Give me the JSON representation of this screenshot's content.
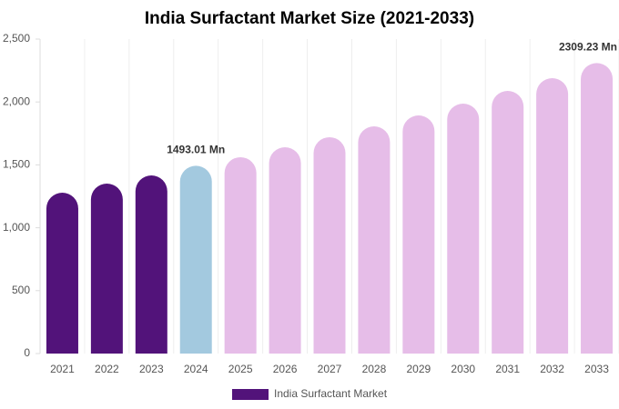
{
  "chart_data": {
    "type": "bar",
    "title": "India Surfactant Market Size (2021-2033)",
    "categories": [
      "2021",
      "2022",
      "2023",
      "2024",
      "2025",
      "2026",
      "2027",
      "2028",
      "2029",
      "2030",
      "2031",
      "2032",
      "2033"
    ],
    "series": [
      {
        "name": "India Surfactant Market",
        "color": "#52137a",
        "colors": [
          "#52137a",
          "#52137a",
          "#52137a",
          "#a3c9df",
          "#e6bde8",
          "#e6bde8",
          "#e6bde8",
          "#e6bde8",
          "#e6bde8",
          "#e6bde8",
          "#e6bde8",
          "#e6bde8",
          "#e6bde8"
        ],
        "values": [
          1279,
          1351,
          1416,
          1493.01,
          1561,
          1640,
          1720,
          1806,
          1893,
          1987,
          2088,
          2189,
          2309.23
        ],
        "value_labels": [
          null,
          null,
          null,
          "1493.01 Mn",
          null,
          null,
          null,
          null,
          null,
          null,
          null,
          null,
          "2309.23 Mn"
        ]
      }
    ],
    "ylim": [
      0,
      2500
    ],
    "yticks": [
      0,
      500,
      {
        "value": 1000,
        "label": "1,000"
      },
      {
        "value": 1500,
        "label": "1,500"
      },
      {
        "value": 2000,
        "label": "2,000"
      },
      {
        "value": 2500,
        "label": "2,500"
      }
    ]
  }
}
